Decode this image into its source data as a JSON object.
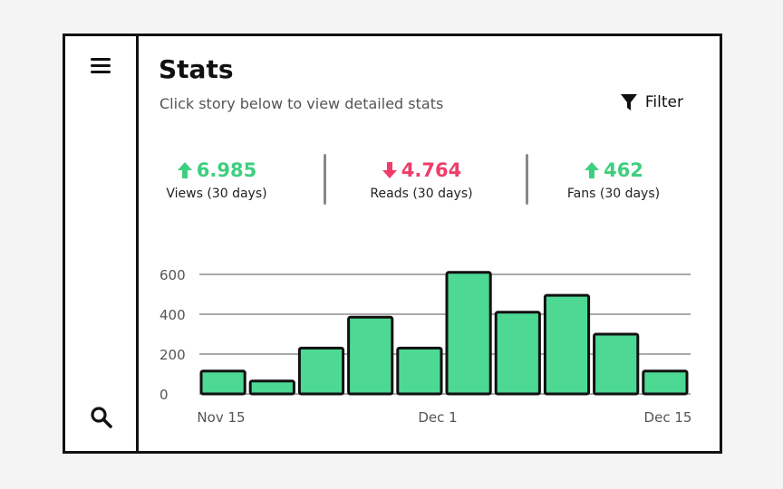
{
  "header": {
    "title": "Stats",
    "subtitle": "Click story below to view detailed stats",
    "filter_label": "Filter"
  },
  "stats": [
    {
      "value": "6.985",
      "label": "Views (30 days)",
      "trend": "up"
    },
    {
      "value": "4.764",
      "label": "Reads (30 days)",
      "trend": "down"
    },
    {
      "value": "462",
      "label": "Fans (30 days)",
      "trend": "up"
    }
  ],
  "colors": {
    "up": "#3ecf7f",
    "down": "#ef3d6a",
    "bar": "#4dd893",
    "grid": "#aaaaaa"
  },
  "icons": {
    "menu": "hamburger-icon",
    "search": "search-icon",
    "filter": "funnel-icon"
  },
  "chart_data": {
    "type": "bar",
    "title": "",
    "xlabel": "",
    "ylabel": "",
    "ylim": [
      0,
      600
    ],
    "yticks": [
      0,
      200,
      400,
      600
    ],
    "x_tick_labels": [
      "Nov 15",
      "Dec 1",
      "Dec 15"
    ],
    "values": [
      115,
      65,
      230,
      385,
      230,
      610,
      410,
      495,
      300,
      115
    ],
    "grid": true
  }
}
